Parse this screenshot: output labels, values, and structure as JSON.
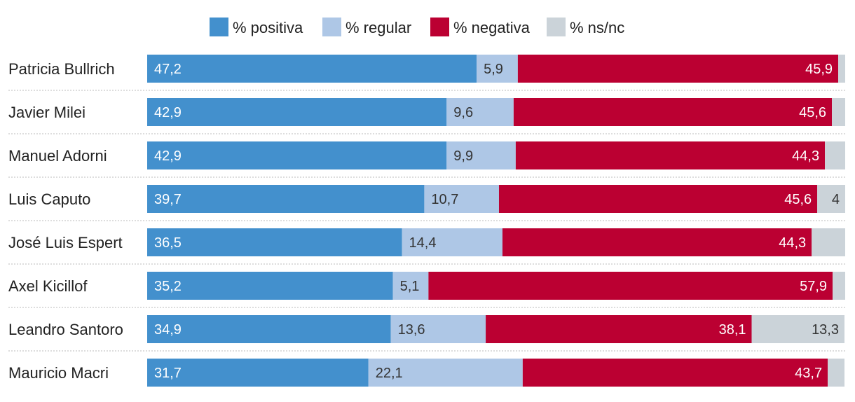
{
  "chart_data": {
    "type": "bar",
    "orientation": "horizontal",
    "stacked": true,
    "legend_position": "top-center",
    "title": "",
    "xlabel": "",
    "ylabel": "",
    "xlim": [
      0,
      100
    ],
    "categories": [
      "Patricia Bullrich",
      "Javier Milei",
      "Manuel Adorni",
      "Luis Caputo",
      "José Luis Espert",
      "Axel Kicillof",
      "Leandro Santoro",
      "Mauricio Macri"
    ],
    "series": [
      {
        "name": "% positiva",
        "color": "#4390cd",
        "label_color": "#ffffff",
        "values": [
          47.2,
          42.9,
          42.9,
          39.7,
          36.5,
          35.2,
          34.9,
          31.7
        ],
        "labels": [
          "47,2",
          "42,9",
          "42,9",
          "39,7",
          "36,5",
          "35,2",
          "34,9",
          "31,7"
        ]
      },
      {
        "name": "% regular",
        "color": "#aec7e6",
        "label_color": "#333333",
        "values": [
          5.9,
          9.6,
          9.9,
          10.7,
          14.4,
          5.1,
          13.6,
          22.1
        ],
        "labels": [
          "5,9",
          "9,6",
          "9,9",
          "10,7",
          "14,4",
          "5,1",
          "13,6",
          "22,1"
        ]
      },
      {
        "name": "% negativa",
        "color": "#bb0032",
        "label_color": "#ffffff",
        "values": [
          45.9,
          45.6,
          44.3,
          45.6,
          44.3,
          57.9,
          38.1,
          43.7
        ],
        "labels": [
          "45,9",
          "45,6",
          "44,3",
          "45,6",
          "44,3",
          "57,9",
          "38,1",
          "43,7"
        ]
      },
      {
        "name": "% ns/nc",
        "color": "#cbd3d9",
        "label_color": "#333333",
        "values": [
          1.0,
          1.9,
          2.9,
          4.0,
          4.8,
          1.8,
          13.3,
          2.4
        ],
        "labels": [
          "",
          "",
          "",
          "4",
          "",
          "",
          "13,3",
          ""
        ]
      }
    ]
  }
}
